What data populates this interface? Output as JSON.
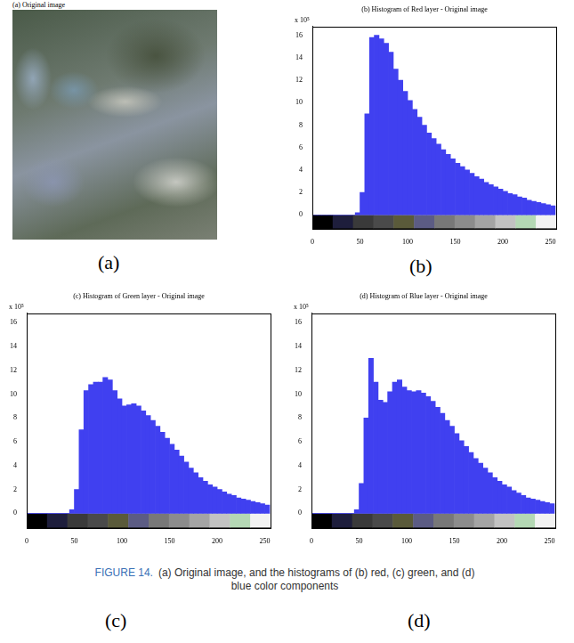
{
  "figure_label": "FIGURE 14.",
  "caption": "(a) Original image, and the histograms of (b) red, (c) green, and (d) blue color components",
  "panel_labels": [
    "(a)",
    "(b)",
    "(c)",
    "(d)"
  ],
  "image": {
    "title": "(a) Original image"
  },
  "chart_data": [
    {
      "type": "histogram",
      "title": "(b) Histogram of Red layer - Original image",
      "y_multiplier": "x 10⁵",
      "bins": [
        0,
        5,
        10,
        15,
        20,
        25,
        30,
        35,
        40,
        45,
        50,
        55,
        60,
        65,
        70,
        75,
        80,
        85,
        90,
        95,
        100,
        105,
        110,
        115,
        120,
        125,
        130,
        135,
        140,
        145,
        150,
        155,
        160,
        165,
        170,
        175,
        180,
        185,
        190,
        195,
        200,
        205,
        210,
        215,
        220,
        225,
        230,
        235,
        240,
        245,
        250,
        255
      ],
      "values": [
        0,
        0,
        0,
        0,
        0,
        0,
        0,
        0,
        0,
        0.2,
        2,
        9,
        15.8,
        16,
        15.7,
        15.3,
        14.5,
        13,
        12,
        11,
        10.2,
        9.4,
        8.7,
        8,
        7.3,
        6.8,
        6.3,
        5.8,
        5.4,
        5,
        4.6,
        4.3,
        4,
        3.7,
        3.4,
        3.2,
        2.9,
        2.7,
        2.5,
        2.3,
        2.1,
        1.9,
        1.8,
        1.6,
        1.5,
        1.3,
        1.2,
        1.1,
        1.0,
        0.9,
        0.8
      ],
      "color": "#4040f0",
      "xlim": [
        0,
        256
      ],
      "xticks": [
        0,
        50,
        100,
        150,
        200,
        250
      ],
      "ylim": [
        -1.2,
        16.8
      ],
      "yticks": [
        0,
        2,
        4,
        6,
        8,
        10,
        12,
        14,
        16
      ],
      "grid": false
    },
    {
      "type": "histogram",
      "title": "(c) Histogram of Green layer - Original image",
      "y_multiplier": "x 10⁵",
      "bins": [
        0,
        5,
        10,
        15,
        20,
        25,
        30,
        35,
        40,
        45,
        50,
        55,
        60,
        65,
        70,
        75,
        80,
        85,
        90,
        95,
        100,
        105,
        110,
        115,
        120,
        125,
        130,
        135,
        140,
        145,
        150,
        155,
        160,
        165,
        170,
        175,
        180,
        185,
        190,
        195,
        200,
        205,
        210,
        215,
        220,
        225,
        230,
        235,
        240,
        245,
        250,
        255
      ],
      "values": [
        0,
        0,
        0,
        0,
        0,
        0,
        0,
        0,
        0,
        0.3,
        2,
        7,
        10.3,
        10.8,
        11,
        11,
        11.4,
        11.2,
        10.3,
        9.6,
        9,
        9.1,
        9.2,
        9,
        8.6,
        8.2,
        7.8,
        7.3,
        6.8,
        6.3,
        5.8,
        5.3,
        4.8,
        4.3,
        3.8,
        3.4,
        3.0,
        2.7,
        2.4,
        2.2,
        2.0,
        1.8,
        1.6,
        1.5,
        1.3,
        1.2,
        1.1,
        1.0,
        0.9,
        0.8,
        0.7
      ],
      "color": "#4040f0",
      "xlim": [
        0,
        256
      ],
      "xticks": [
        0,
        50,
        100,
        150,
        200,
        250
      ],
      "ylim": [
        -1.2,
        16.8
      ],
      "yticks": [
        0,
        2,
        4,
        6,
        8,
        10,
        12,
        14,
        16
      ],
      "grid": false
    },
    {
      "type": "histogram",
      "title": "(d) Histogram of Blue layer - Original image",
      "y_multiplier": "x 10⁵",
      "bins": [
        0,
        5,
        10,
        15,
        20,
        25,
        30,
        35,
        40,
        45,
        50,
        55,
        60,
        65,
        70,
        75,
        80,
        85,
        90,
        95,
        100,
        105,
        110,
        115,
        120,
        125,
        130,
        135,
        140,
        145,
        150,
        155,
        160,
        165,
        170,
        175,
        180,
        185,
        190,
        195,
        200,
        205,
        210,
        215,
        220,
        225,
        230,
        235,
        240,
        245,
        250,
        255
      ],
      "values": [
        0,
        0,
        0,
        0,
        0,
        0,
        0,
        0,
        0,
        0.3,
        2.5,
        8,
        13,
        11,
        9.5,
        9.3,
        10.2,
        11,
        11.2,
        10.6,
        10.3,
        10.2,
        10.3,
        10.1,
        9.8,
        9.4,
        8.9,
        8.4,
        7.8,
        7.3,
        6.7,
        6.1,
        5.6,
        5.1,
        4.6,
        4.2,
        3.8,
        3.4,
        3.0,
        2.7,
        2.4,
        2.2,
        1.9,
        1.7,
        1.5,
        1.3,
        1.2,
        1.1,
        1.0,
        0.9,
        0.8
      ],
      "color": "#4040f0",
      "xlim": [
        0,
        256
      ],
      "xticks": [
        0,
        50,
        100,
        150,
        200,
        250
      ],
      "ylim": [
        -1.2,
        16.8
      ],
      "yticks": [
        0,
        2,
        4,
        6,
        8,
        10,
        12,
        14,
        16
      ],
      "grid": false
    }
  ]
}
